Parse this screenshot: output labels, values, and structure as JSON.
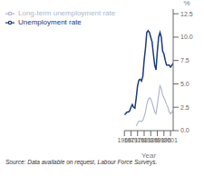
{
  "chart_data": {
    "type": "line",
    "xlabel": "Year",
    "ylabel": "%",
    "annotations": [
      "Source: Data available on request, Labour Force Surveys."
    ],
    "x": [
      1966,
      1967,
      1968,
      1969,
      1970,
      1971,
      1972,
      1973,
      1974,
      1975,
      1976,
      1977,
      1978,
      1979,
      1980,
      1981,
      1982,
      1983,
      1984,
      1985,
      1986,
      1987,
      1988,
      1989,
      1990,
      1991,
      1992,
      1993,
      1994,
      1995,
      1996,
      1997,
      1998,
      1999,
      2000,
      2001,
      2002,
      2003
    ],
    "series": [
      {
        "name": "Unemployment rate",
        "color": "#1a3a7a",
        "values": [
          1.7,
          1.8,
          2.0,
          2.0,
          2.1,
          2.5,
          2.8,
          2.5,
          2.4,
          3.5,
          4.8,
          5.4,
          5.5,
          5.3,
          5.8,
          7.5,
          8.8,
          10.5,
          10.7,
          10.5,
          10.0,
          9.5,
          8.2,
          7.0,
          6.5,
          8.5,
          10.0,
          10.5,
          10.0,
          8.5,
          8.2,
          7.5,
          7.0,
          7.0,
          7.0,
          6.8,
          7.0,
          7.2
        ]
      },
      {
        "name": "Long-term unemployment rate",
        "color": "#b0b8cc",
        "values": [
          null,
          null,
          null,
          null,
          null,
          null,
          null,
          null,
          null,
          0.5,
          0.8,
          1.0,
          1.0,
          1.0,
          1.1,
          1.5,
          2.0,
          2.8,
          3.3,
          3.5,
          3.4,
          3.0,
          2.5,
          2.0,
          1.8,
          2.8,
          3.8,
          4.8,
          4.5,
          3.8,
          3.5,
          3.2,
          2.8,
          2.5,
          2.0,
          1.8,
          2.0,
          2.0
        ]
      }
    ],
    "xlim": [
      1966,
      2003
    ],
    "xticks": [
      1966,
      1971,
      1976,
      1981,
      1986,
      1991,
      1996,
      2001
    ],
    "ylim": [
      0,
      13.0
    ],
    "yticks": [
      {
        "value": 0,
        "label": "0.0"
      },
      2.5,
      {
        "value": 5,
        "label": "5.0"
      },
      7.5,
      {
        "value": 10,
        "label": "10.0"
      },
      12.5
    ],
    "grid": false,
    "legend": "upper left"
  }
}
